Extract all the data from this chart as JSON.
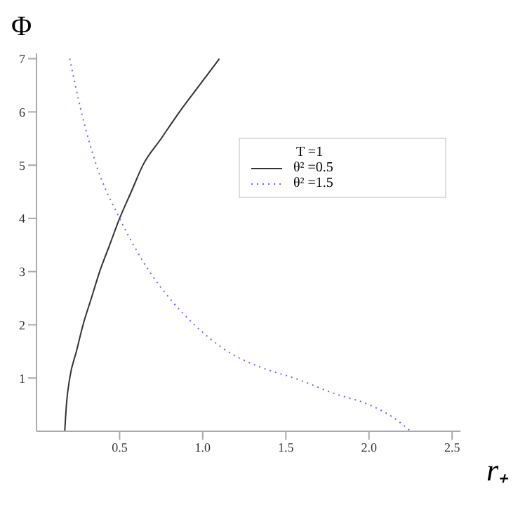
{
  "chart_data": {
    "type": "line",
    "xlabel": "r₊",
    "ylabel": "Φ",
    "legend_title": "T =1",
    "legend": "top right",
    "marker": "none",
    "xlim": [
      0,
      2.55
    ],
    "ylim": [
      0,
      7.1
    ],
    "xticks": [
      0.5,
      {
        "value": 1,
        "label": "1.0"
      },
      1.5,
      {
        "value": 2,
        "label": "2.0"
      },
      2.5
    ],
    "yticks": [
      1,
      2,
      3,
      4,
      5,
      6,
      7
    ],
    "series": [
      {
        "name": "θ² =0.5",
        "color": "#333333",
        "line_style": "solid",
        "x": [
          0.17,
          0.18,
          0.2,
          0.24,
          0.28,
          0.33,
          0.38,
          0.44,
          0.5,
          0.57,
          0.64,
          0.75,
          0.86,
          0.98,
          1.1
        ],
        "values": [
          0,
          0.5,
          1,
          1.5,
          2,
          2.5,
          3,
          3.5,
          4,
          4.5,
          5,
          5.5,
          6,
          6.5,
          7
        ]
      },
      {
        "name": "θ² =1.5",
        "color": "#6666ff",
        "line_style": "dotted",
        "x": [
          0.2,
          0.27,
          0.36,
          0.5,
          0.68,
          0.8,
          0.95,
          1.15,
          1.35,
          1.55,
          1.8,
          2.0,
          2.15,
          2.25
        ],
        "values": [
          7,
          6,
          5,
          4,
          3,
          2.5,
          2,
          1.5,
          1.2,
          1,
          0.7,
          0.5,
          0.25,
          0
        ]
      }
    ]
  }
}
